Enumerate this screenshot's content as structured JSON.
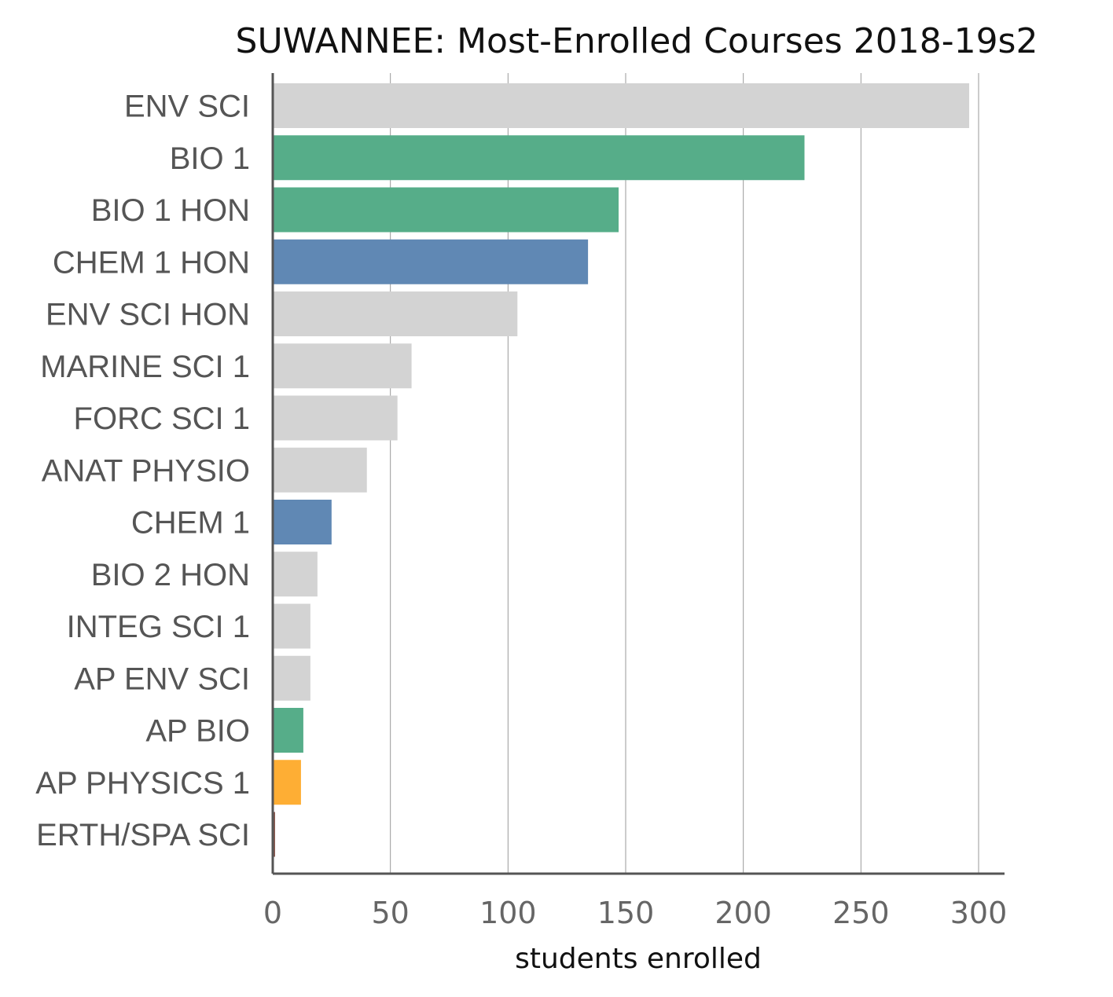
{
  "chart_data": {
    "type": "bar",
    "orientation": "horizontal",
    "title": "SUWANNEE: Most-Enrolled Courses 2018-19s2",
    "xlabel": "students enrolled",
    "ylabel": "",
    "xlim": [
      0,
      310
    ],
    "xticks": [
      0,
      50,
      100,
      150,
      200,
      250,
      300
    ],
    "grid": "vertical",
    "categories": [
      "ENV SCI",
      "BIO 1",
      "BIO 1 HON",
      "CHEM 1 HON",
      "ENV SCI HON",
      "MARINE SCI 1",
      "FORC SCI 1",
      "ANAT PHYSIO",
      "CHEM 1",
      "BIO 2 HON",
      "INTEG SCI 1",
      "AP ENV SCI",
      "AP BIO",
      "AP PHYSICS 1",
      "ERTH/SPA SCI"
    ],
    "values": [
      296,
      226,
      147,
      134,
      104,
      59,
      53,
      40,
      25,
      19,
      16,
      16,
      13,
      12,
      1
    ],
    "colors": [
      "#d3d3d3",
      "#56ad89",
      "#56ad89",
      "#6088b4",
      "#d3d3d3",
      "#d3d3d3",
      "#d3d3d3",
      "#d3d3d3",
      "#6088b4",
      "#d3d3d3",
      "#d3d3d3",
      "#d3d3d3",
      "#56ad89",
      "#feae34",
      "#8c5a50"
    ],
    "axis_color": "#555555",
    "grid_color": "#9a9a9a"
  }
}
